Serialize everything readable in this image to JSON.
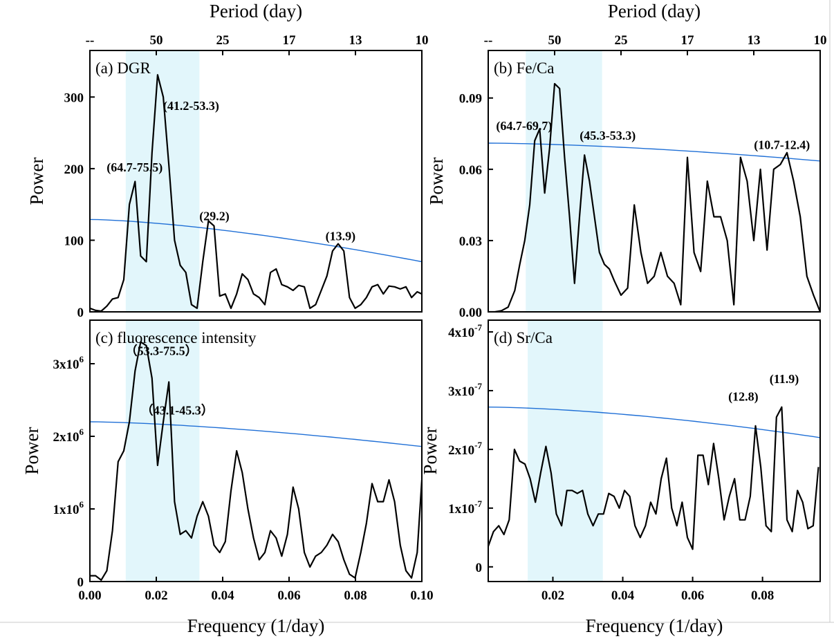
{
  "colors": {
    "highlight": "#e2f6fb",
    "significance": "#1f6fd6",
    "series": "#000000"
  },
  "chart_data": [
    {
      "type": "line",
      "label": "(a) DGR",
      "top_axis": {
        "title": "Period (day)",
        "ticks": [
          "--",
          "50",
          "25",
          "17",
          "13",
          "10"
        ],
        "positions": [
          0,
          0.02,
          0.04,
          0.06,
          0.08,
          0.1
        ]
      },
      "xlabel": "",
      "ylabel": "Power",
      "xlim": [
        0,
        0.1
      ],
      "ylim": [
        0,
        365
      ],
      "xticks": [],
      "yticks": [
        {
          "v": 0,
          "t": "0"
        },
        {
          "v": 100,
          "t": "100"
        },
        {
          "v": 200,
          "t": "200"
        },
        {
          "v": 300,
          "t": "300"
        }
      ],
      "band": [
        0.0108,
        0.033
      ],
      "significance": {
        "x": [
          0,
          0.1
        ],
        "y": [
          129,
          70
        ],
        "curve": 0.5
      },
      "x": [
        0.0,
        0.0017,
        0.0034,
        0.0051,
        0.0068,
        0.0085,
        0.0102,
        0.0119,
        0.0136,
        0.0153,
        0.017,
        0.0187,
        0.0204,
        0.0221,
        0.0238,
        0.0255,
        0.0272,
        0.0289,
        0.0306,
        0.0323,
        0.034,
        0.0357,
        0.0374,
        0.0391,
        0.0408,
        0.0425,
        0.0442,
        0.0459,
        0.0476,
        0.0493,
        0.051,
        0.0527,
        0.0544,
        0.0561,
        0.0578,
        0.0595,
        0.0612,
        0.0629,
        0.0646,
        0.0663,
        0.068,
        0.0697,
        0.0714,
        0.0731,
        0.0748,
        0.0765,
        0.0782,
        0.0799,
        0.0816,
        0.0833,
        0.085,
        0.0867,
        0.0884,
        0.0901,
        0.0918,
        0.0935,
        0.0952,
        0.0969,
        0.0986,
        0.1
      ],
      "values": [
        5,
        2,
        1,
        8,
        18,
        20,
        45,
        150,
        182,
        78,
        70,
        222,
        331,
        300,
        205,
        100,
        65,
        55,
        10,
        5,
        70,
        127,
        120,
        22,
        25,
        5,
        25,
        53,
        45,
        25,
        20,
        10,
        55,
        60,
        38,
        35,
        30,
        37,
        35,
        5,
        10,
        30,
        50,
        85,
        95,
        85,
        20,
        5,
        10,
        20,
        35,
        38,
        25,
        36,
        35,
        32,
        35,
        20,
        28,
        25
      ],
      "annotations": [
        {
          "text": "(64.7-75.5)",
          "x": 0.0135,
          "y": 196
        },
        {
          "text": "(41.2-53.3)",
          "x": 0.0305,
          "y": 282
        },
        {
          "text": "(29.2)",
          "x": 0.0375,
          "y": 128
        },
        {
          "text": "(13.9)",
          "x": 0.0755,
          "y": 100
        }
      ]
    },
    {
      "type": "line",
      "label": "(b) Fe/Ca",
      "top_axis": {
        "title": "Period (day)",
        "ticks": [
          "--",
          "50",
          "25",
          "17",
          "13",
          "10"
        ],
        "positions": [
          0,
          0.02,
          0.04,
          0.06,
          0.08,
          0.1
        ]
      },
      "xlabel": "",
      "ylabel": "Power",
      "xlim": [
        0,
        0.1
      ],
      "ylim": [
        0,
        0.11
      ],
      "xticks": [],
      "yticks": [
        {
          "v": 0,
          "t": "0.00"
        },
        {
          "v": 0.03,
          "t": "0.03"
        },
        {
          "v": 0.06,
          "t": "0.06"
        },
        {
          "v": 0.09,
          "t": "0.09"
        }
      ],
      "band": [
        0.0113,
        0.0343
      ],
      "significance": {
        "x": [
          0,
          0.1
        ],
        "y": [
          0.071,
          0.0635
        ],
        "curve": 0.6
      },
      "x": [
        0.0,
        0.002,
        0.004,
        0.006,
        0.008,
        0.0095,
        0.011,
        0.0125,
        0.014,
        0.0155,
        0.017,
        0.0185,
        0.02,
        0.0215,
        0.023,
        0.0245,
        0.026,
        0.0275,
        0.029,
        0.0305,
        0.032,
        0.0335,
        0.035,
        0.0365,
        0.038,
        0.04,
        0.042,
        0.044,
        0.046,
        0.048,
        0.05,
        0.052,
        0.054,
        0.056,
        0.058,
        0.06,
        0.062,
        0.064,
        0.066,
        0.068,
        0.07,
        0.072,
        0.074,
        0.076,
        0.078,
        0.08,
        0.082,
        0.084,
        0.086,
        0.088,
        0.09,
        0.092,
        0.094,
        0.096,
        0.098,
        0.1
      ],
      "values": [
        0.0,
        0.0,
        0.0005,
        0.002,
        0.009,
        0.02,
        0.03,
        0.045,
        0.072,
        0.077,
        0.05,
        0.069,
        0.096,
        0.094,
        0.065,
        0.04,
        0.012,
        0.04,
        0.066,
        0.055,
        0.04,
        0.025,
        0.02,
        0.018,
        0.013,
        0.007,
        0.01,
        0.045,
        0.025,
        0.012,
        0.015,
        0.025,
        0.015,
        0.012,
        0.003,
        0.065,
        0.025,
        0.017,
        0.055,
        0.04,
        0.04,
        0.03,
        0.003,
        0.065,
        0.055,
        0.03,
        0.06,
        0.026,
        0.06,
        0.062,
        0.067,
        0.055,
        0.04,
        0.015,
        0.007,
        0.0
      ],
      "annotations": [
        {
          "text": "(64.7-69.7)",
          "x": 0.0108,
          "y": 0.0765
        },
        {
          "text": "(45.3-53.3)",
          "x": 0.036,
          "y": 0.0725
        },
        {
          "text": "(10.7-12.4)",
          "x": 0.0885,
          "y": 0.0685
        }
      ]
    },
    {
      "type": "line",
      "label": "(c) fluorescence intensity",
      "top_axis": null,
      "xlabel": "Frequency (1/day)",
      "ylabel": "Power",
      "xlim": [
        0,
        0.1
      ],
      "ylim": [
        0,
        3600000.0
      ],
      "xticks": [
        {
          "v": 0,
          "t": "0.00"
        },
        {
          "v": 0.02,
          "t": "0.02"
        },
        {
          "v": 0.04,
          "t": "0.04"
        },
        {
          "v": 0.06,
          "t": "0.06"
        },
        {
          "v": 0.08,
          "t": "0.08"
        },
        {
          "v": 0.1,
          "t": "0.10"
        }
      ],
      "yticks": [
        {
          "v": 0,
          "t": "0",
          "sup": ""
        },
        {
          "v": 1000000,
          "t": "1x10",
          "sup": "6"
        },
        {
          "v": 2000000,
          "t": "2x10",
          "sup": "6"
        },
        {
          "v": 3000000,
          "t": "3x10",
          "sup": "6"
        }
      ],
      "band": [
        0.0108,
        0.033
      ],
      "significance": {
        "x": [
          0,
          0.1
        ],
        "y": [
          2200000,
          1860000
        ],
        "curve": 0.5
      },
      "x": [
        0.0,
        0.0017,
        0.0034,
        0.0051,
        0.0068,
        0.0085,
        0.0102,
        0.0119,
        0.0136,
        0.0153,
        0.017,
        0.0187,
        0.0204,
        0.0221,
        0.0238,
        0.0255,
        0.0272,
        0.0289,
        0.0306,
        0.0323,
        0.034,
        0.0357,
        0.0374,
        0.0391,
        0.0408,
        0.0425,
        0.0442,
        0.0459,
        0.0476,
        0.0493,
        0.051,
        0.0527,
        0.0544,
        0.0561,
        0.0578,
        0.0595,
        0.0612,
        0.0629,
        0.0646,
        0.0663,
        0.068,
        0.0697,
        0.0714,
        0.0731,
        0.0748,
        0.0765,
        0.0782,
        0.0799,
        0.0816,
        0.0833,
        0.085,
        0.0867,
        0.0884,
        0.0901,
        0.0918,
        0.0935,
        0.0952,
        0.0969,
        0.0986,
        0.1
      ],
      "values": [
        80000,
        80000,
        20000,
        150000,
        700000,
        1650000,
        1800000,
        2200000,
        2900000,
        3300000,
        3250000,
        2800000,
        1600000,
        2200000,
        2750000,
        1100000,
        650000,
        700000,
        600000,
        900000,
        1100000,
        900000,
        500000,
        400000,
        550000,
        1250000,
        1800000,
        1500000,
        1000000,
        600000,
        300000,
        400000,
        700000,
        600000,
        350000,
        650000,
        1300000,
        1000000,
        400000,
        200000,
        350000,
        400000,
        500000,
        650000,
        550000,
        300000,
        100000,
        50000,
        400000,
        800000,
        1350000,
        1100000,
        1100000,
        1400000,
        1100000,
        500000,
        150000,
        50000,
        400000,
        1400000
      ],
      "annotations": [
        {
          "text": "（53.3-75.5）",
          "x": 0.0215,
          "y": 3120000
        },
        {
          "text": "（43.1-45.3）",
          "x": 0.0263,
          "y": 2300000
        }
      ]
    },
    {
      "type": "line",
      "label": "(d) Sr/Ca",
      "top_axis": null,
      "xlabel": "Frequency (1/day)",
      "ylabel": "Power",
      "xlim": [
        0.0015,
        0.0965
      ],
      "ylim": [
        -2.5e-08,
        4.2e-07
      ],
      "xticks": [
        {
          "v": 0.02,
          "t": "0.02"
        },
        {
          "v": 0.04,
          "t": "0.04"
        },
        {
          "v": 0.06,
          "t": "0.06"
        },
        {
          "v": 0.08,
          "t": "0.08"
        }
      ],
      "yticks": [
        {
          "v": 0,
          "t": "0",
          "sup": ""
        },
        {
          "v": 1e-07,
          "t": "1x10",
          "sup": "-7"
        },
        {
          "v": 2e-07,
          "t": "2x10",
          "sup": "-7"
        },
        {
          "v": 3e-07,
          "t": "3x10",
          "sup": "-7"
        },
        {
          "v": 4e-07,
          "t": "4x10",
          "sup": "-7"
        }
      ],
      "band": [
        0.0128,
        0.0343
      ],
      "significance": {
        "x": [
          0.0015,
          0.0965
        ],
        "y": [
          2.72e-07,
          2.2e-07
        ],
        "curve": 0.6
      },
      "x": [
        0.0015,
        0.003,
        0.0045,
        0.006,
        0.0075,
        0.009,
        0.0105,
        0.012,
        0.0135,
        0.015,
        0.0165,
        0.018,
        0.0195,
        0.021,
        0.0225,
        0.024,
        0.0255,
        0.027,
        0.0285,
        0.03,
        0.0315,
        0.033,
        0.0345,
        0.036,
        0.0375,
        0.039,
        0.0405,
        0.042,
        0.0435,
        0.045,
        0.0465,
        0.048,
        0.0495,
        0.051,
        0.0525,
        0.054,
        0.0555,
        0.057,
        0.0585,
        0.06,
        0.0615,
        0.063,
        0.0645,
        0.066,
        0.0675,
        0.069,
        0.0705,
        0.072,
        0.0735,
        0.075,
        0.0765,
        0.078,
        0.0795,
        0.081,
        0.0825,
        0.084,
        0.0855,
        0.087,
        0.0885,
        0.09,
        0.0915,
        0.093,
        0.0945,
        0.096
      ],
      "values": [
        3.5e-08,
        6e-08,
        7e-08,
        5.5e-08,
        8e-08,
        2e-07,
        1.8e-07,
        1.75e-07,
        1.5e-07,
        1.1e-07,
        1.6e-07,
        2.05e-07,
        1.6e-07,
        9e-08,
        7e-08,
        1.3e-07,
        1.3e-07,
        1.25e-07,
        1.3e-07,
        9e-08,
        7e-08,
        9e-08,
        9e-08,
        1.25e-07,
        1.2e-07,
        1e-07,
        1.3e-07,
        1.2e-07,
        7e-08,
        5e-08,
        7e-08,
        1.1e-07,
        9e-08,
        1.5e-07,
        1.85e-07,
        1e-07,
        7e-08,
        1.1e-07,
        5e-08,
        3e-08,
        1.9e-07,
        1.9e-07,
        1.4e-07,
        2.1e-07,
        1.5e-07,
        8e-08,
        1.2e-07,
        1.5e-07,
        8e-08,
        8e-08,
        1.2e-07,
        2.4e-07,
        1.7e-07,
        7e-08,
        6e-08,
        2.55e-07,
        2.72e-07,
        8e-08,
        6e-08,
        1.3e-07,
        1.1e-07,
        6.5e-08,
        7e-08,
        1.7e-07
      ],
      "annotations": [
        {
          "text": "(12.8)",
          "x": 0.0745,
          "y": 2.83e-07
        },
        {
          "text": "(11.9)",
          "x": 0.0862,
          "y": 3.13e-07
        }
      ]
    }
  ]
}
